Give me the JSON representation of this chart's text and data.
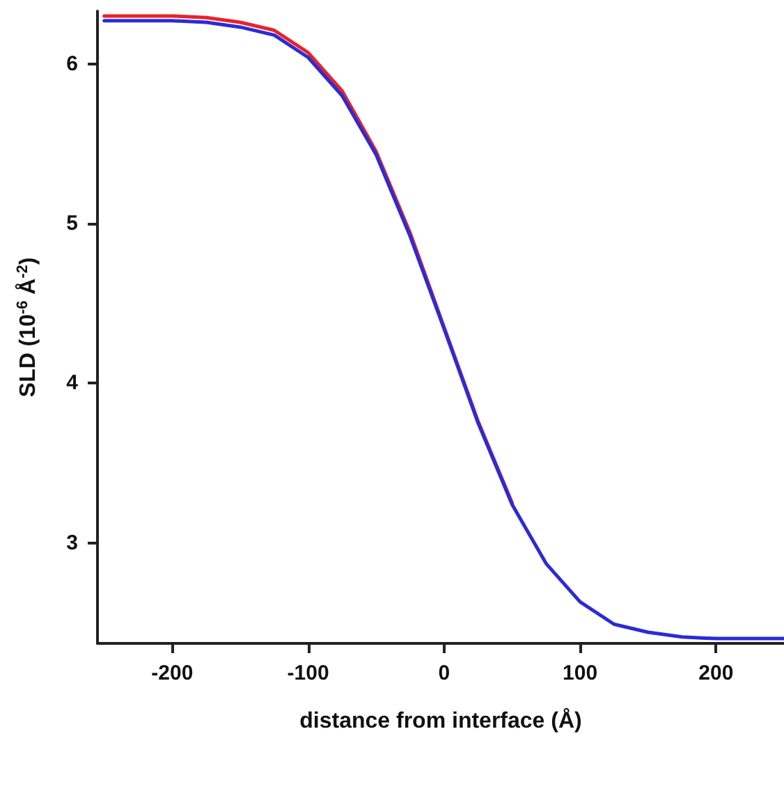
{
  "chart_data": {
    "type": "line",
    "xlabel": "distance from interface (Å)",
    "ylabel": "SLD (10$^{-6}$ Å$^{-2}$)",
    "x": [
      -250,
      -225,
      -200,
      -175,
      -150,
      -125,
      -100,
      -75,
      -50,
      -25,
      0,
      25,
      50,
      75,
      100,
      125,
      150,
      175,
      200,
      225,
      250
    ],
    "series": [
      {
        "color": "#e8232a",
        "values": [
          6.3,
          6.3,
          6.3,
          6.29,
          6.26,
          6.21,
          6.07,
          5.83,
          5.45,
          4.94,
          4.35,
          3.76,
          3.25,
          null,
          null,
          null,
          null,
          null,
          null,
          null,
          null
        ]
      },
      {
        "color": "#2b2bd6",
        "values": [
          6.27,
          6.27,
          6.27,
          6.26,
          6.23,
          6.18,
          6.04,
          5.8,
          5.43,
          4.92,
          4.34,
          3.75,
          3.24,
          2.87,
          2.63,
          2.49,
          2.44,
          2.41,
          2.4,
          2.4,
          2.4
        ]
      }
    ],
    "xlim": [
      -255,
      250
    ],
    "xticks": [
      -200,
      -100,
      0,
      100,
      200
    ],
    "ylim": [
      2.37,
      6.33
    ],
    "yticks": [
      3,
      4,
      5,
      6
    ],
    "grid": false,
    "marker": "none",
    "line_style": "solid"
  }
}
